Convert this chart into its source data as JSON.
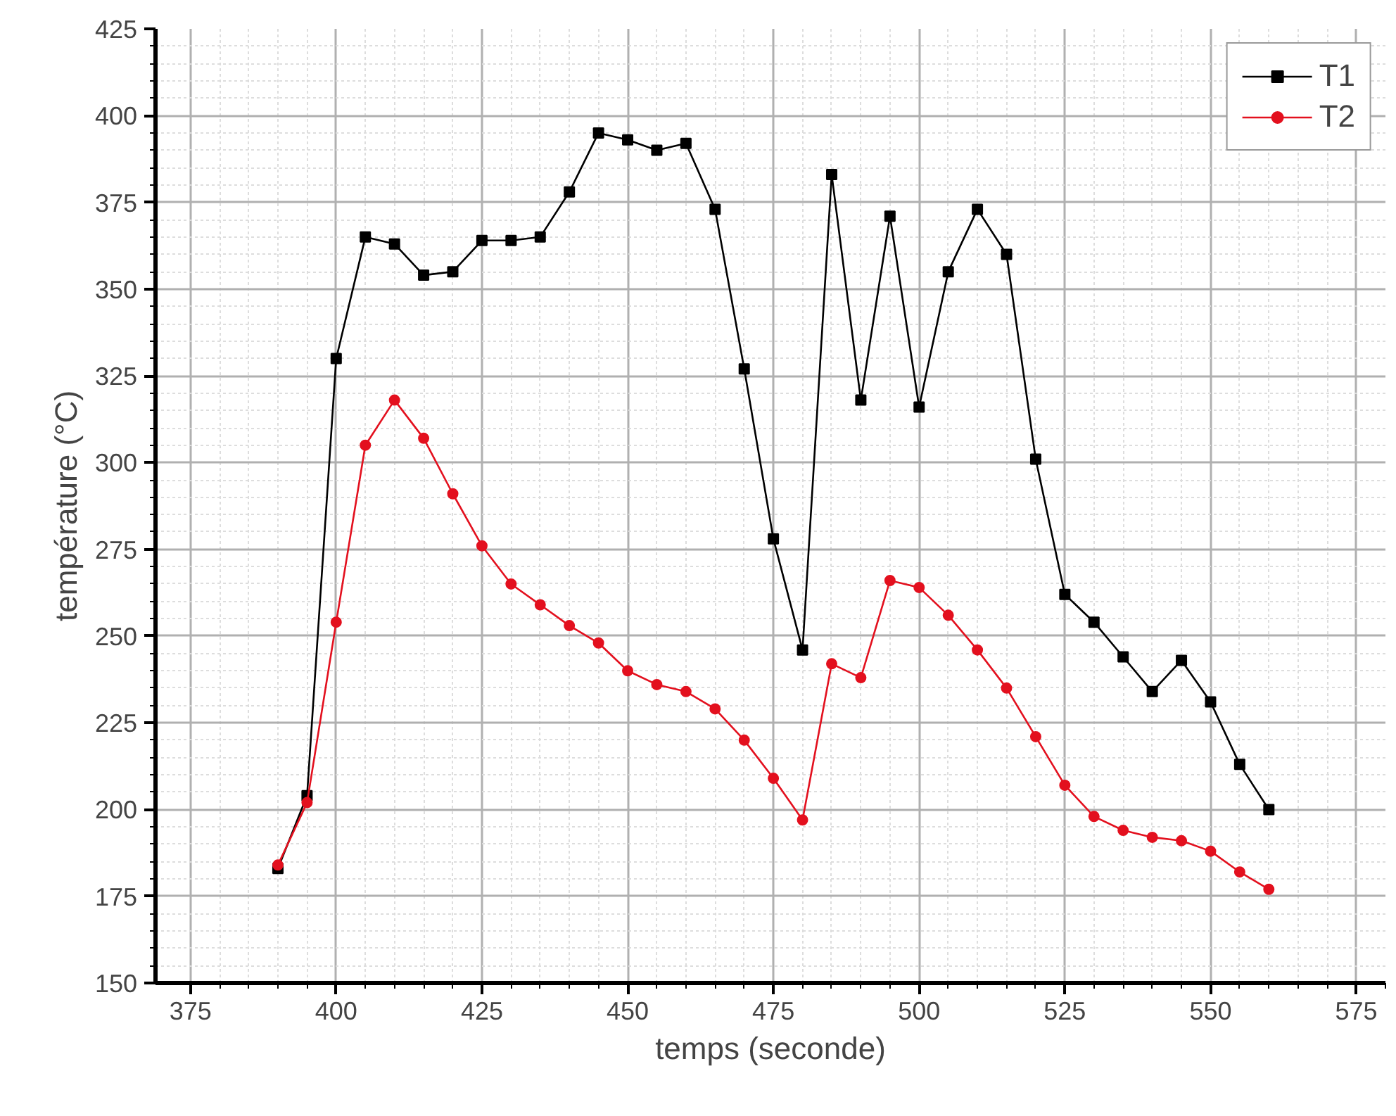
{
  "chart_data": {
    "type": "line",
    "xlabel": "temps (seconde)",
    "ylabel": "température (°C)",
    "x": [
      390,
      395,
      400,
      405,
      410,
      415,
      420,
      425,
      430,
      435,
      440,
      445,
      450,
      455,
      460,
      465,
      470,
      475,
      480,
      485,
      490,
      495,
      500,
      505,
      510,
      515,
      520,
      525,
      530,
      535,
      540,
      545,
      550,
      555,
      560
    ],
    "series": [
      {
        "name": "T1",
        "color": "#000000",
        "marker": "square",
        "values": [
          183,
          204,
          330,
          365,
          363,
          354,
          355,
          364,
          364,
          365,
          378,
          395,
          393,
          390,
          392,
          373,
          327,
          278,
          246,
          383,
          318,
          371,
          316,
          355,
          373,
          360,
          301,
          262,
          254,
          244,
          234,
          243,
          231,
          213,
          200
        ]
      },
      {
        "name": "T2",
        "color": "#e3101e",
        "marker": "circle",
        "values": [
          184,
          202,
          254,
          305,
          318,
          307,
          291,
          276,
          265,
          259,
          253,
          248,
          240,
          236,
          234,
          229,
          220,
          209,
          197,
          242,
          238,
          266,
          264,
          256,
          246,
          235,
          221,
          207,
          198,
          194,
          192,
          191,
          188,
          182,
          177
        ]
      }
    ],
    "xlim": [
      369,
      580
    ],
    "xticks": [
      375,
      400,
      425,
      450,
      475,
      500,
      525,
      550,
      575
    ],
    "ylim": [
      150,
      425
    ],
    "yticks": [
      150,
      175,
      200,
      225,
      250,
      275,
      300,
      325,
      350,
      375,
      400,
      425
    ],
    "grid": true,
    "legend": "top right",
    "line_style": "solid"
  }
}
